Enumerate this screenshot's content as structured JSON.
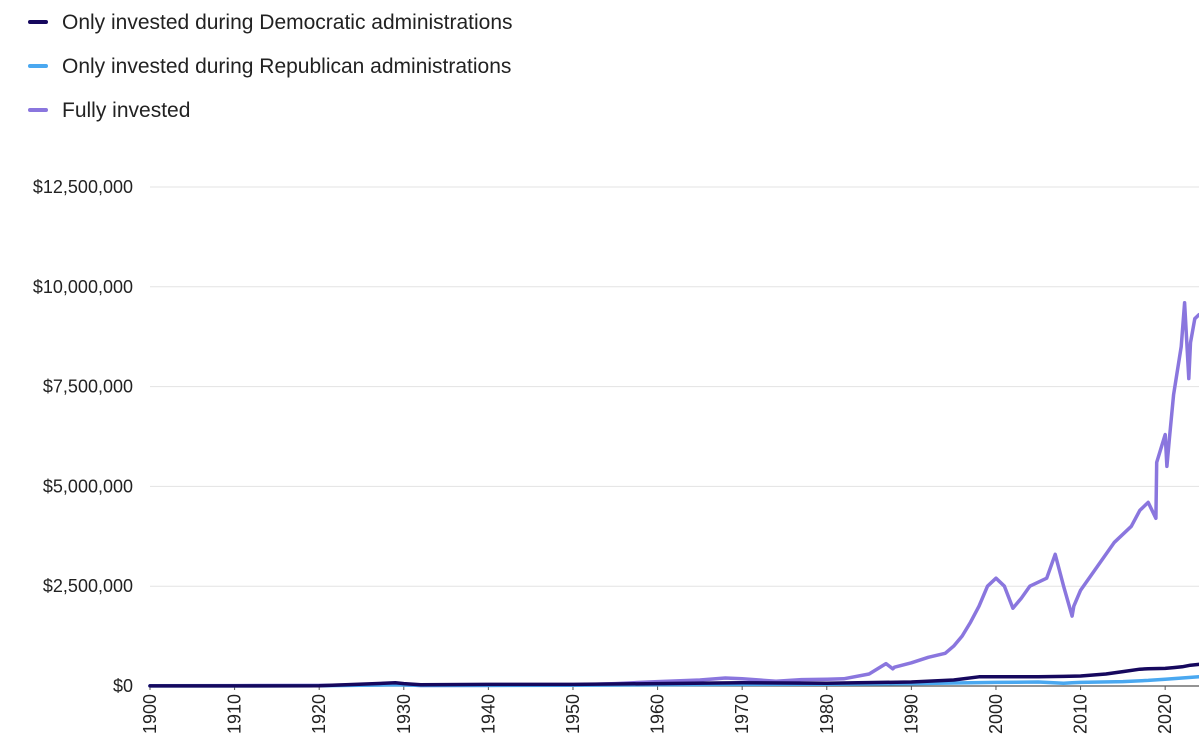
{
  "legend": {
    "items": [
      {
        "label": "Only invested during Democratic administrations",
        "color": "#16085e"
      },
      {
        "label": "Only invested during Republican administrations",
        "color": "#4aa8f0"
      },
      {
        "label": "Fully invested",
        "color": "#8a76de"
      }
    ]
  },
  "chart_data": {
    "type": "line",
    "title": "",
    "xlabel": "",
    "ylabel": "",
    "xlim": [
      1900,
      2024
    ],
    "ylim": [
      0,
      12500000
    ],
    "grid": "horizontal",
    "legend_position": "top-left",
    "y_ticks": [
      {
        "value": 0,
        "label": "$0"
      },
      {
        "value": 2500000,
        "label": "$2,500,000"
      },
      {
        "value": 5000000,
        "label": "$5,000,000"
      },
      {
        "value": 7500000,
        "label": "$7,500,000"
      },
      {
        "value": 10000000,
        "label": "$10,000,000"
      },
      {
        "value": 12500000,
        "label": "$12,500,000"
      }
    ],
    "x_ticks": [
      {
        "value": 1900,
        "label": "1900"
      },
      {
        "value": 1910,
        "label": "1910"
      },
      {
        "value": 1920,
        "label": "1920"
      },
      {
        "value": 1930,
        "label": "1930"
      },
      {
        "value": 1940,
        "label": "1940"
      },
      {
        "value": 1950,
        "label": "1950"
      },
      {
        "value": 1960,
        "label": "1960"
      },
      {
        "value": 1970,
        "label": "1970"
      },
      {
        "value": 1980,
        "label": "1980"
      },
      {
        "value": 1990,
        "label": "1990"
      },
      {
        "value": 2000,
        "label": "2000"
      },
      {
        "value": 2010,
        "label": "2010"
      },
      {
        "value": 2020,
        "label": "2020"
      }
    ],
    "series": [
      {
        "name": "Only invested during Democratic administrations",
        "color": "#16085e",
        "x": [
          1900,
          1920,
          1929,
          1930,
          1932,
          1940,
          1950,
          1960,
          1970,
          1980,
          1990,
          1995,
          1998,
          2000,
          2005,
          2008,
          2010,
          2013,
          2015,
          2017,
          2018,
          2020,
          2021,
          2022,
          2023,
          2024
        ],
        "y": [
          2000,
          5000,
          80000,
          60000,
          30000,
          40000,
          40000,
          60000,
          80000,
          70000,
          100000,
          150000,
          230000,
          230000,
          230000,
          240000,
          250000,
          300000,
          360000,
          420000,
          430000,
          440000,
          460000,
          480000,
          520000,
          540000
        ]
      },
      {
        "name": "Only invested during Republican administrations",
        "color": "#4aa8f0",
        "x": [
          1900,
          1920,
          1929,
          1932,
          1940,
          1950,
          1960,
          1970,
          1980,
          1990,
          2000,
          2005,
          2008,
          2009,
          2010,
          2015,
          2018,
          2020,
          2022,
          2024
        ],
        "y": [
          2000,
          4000,
          30000,
          15000,
          15000,
          20000,
          30000,
          40000,
          45000,
          60000,
          90000,
          100000,
          70000,
          80000,
          90000,
          110000,
          140000,
          170000,
          200000,
          230000
        ]
      },
      {
        "name": "Fully invested",
        "color": "#8a76de",
        "x": [
          1900,
          1910,
          1920,
          1929,
          1932,
          1940,
          1950,
          1955,
          1960,
          1965,
          1968,
          1970,
          1974,
          1977,
          1980,
          1982,
          1985,
          1987,
          1987.8,
          1988,
          1990,
          1992,
          1994,
          1995,
          1996,
          1997,
          1998,
          1999,
          2000,
          2001,
          2002,
          2003,
          2004,
          2006,
          2007,
          2008,
          2009,
          2009.2,
          2010,
          2012,
          2014,
          2016,
          2017,
          2018,
          2018.9,
          2019,
          2020,
          2020.2,
          2020.5,
          2021,
          2021.9,
          2022.3,
          2022.8,
          2023,
          2023.5,
          2024
        ],
        "y": [
          8000,
          10000,
          15000,
          40000,
          12000,
          15000,
          25000,
          60000,
          110000,
          150000,
          200000,
          180000,
          120000,
          160000,
          170000,
          180000,
          300000,
          560000,
          430000,
          470000,
          580000,
          720000,
          820000,
          1000000,
          1250000,
          1600000,
          2000000,
          2500000,
          2700000,
          2500000,
          1950000,
          2200000,
          2500000,
          2700000,
          3300000,
          2500000,
          1750000,
          2000000,
          2400000,
          3000000,
          3600000,
          4000000,
          4400000,
          4600000,
          4200000,
          5600000,
          6300000,
          5500000,
          6200000,
          7300000,
          8500000,
          9600000,
          7700000,
          8600000,
          9200000,
          9300000
        ]
      }
    ]
  }
}
